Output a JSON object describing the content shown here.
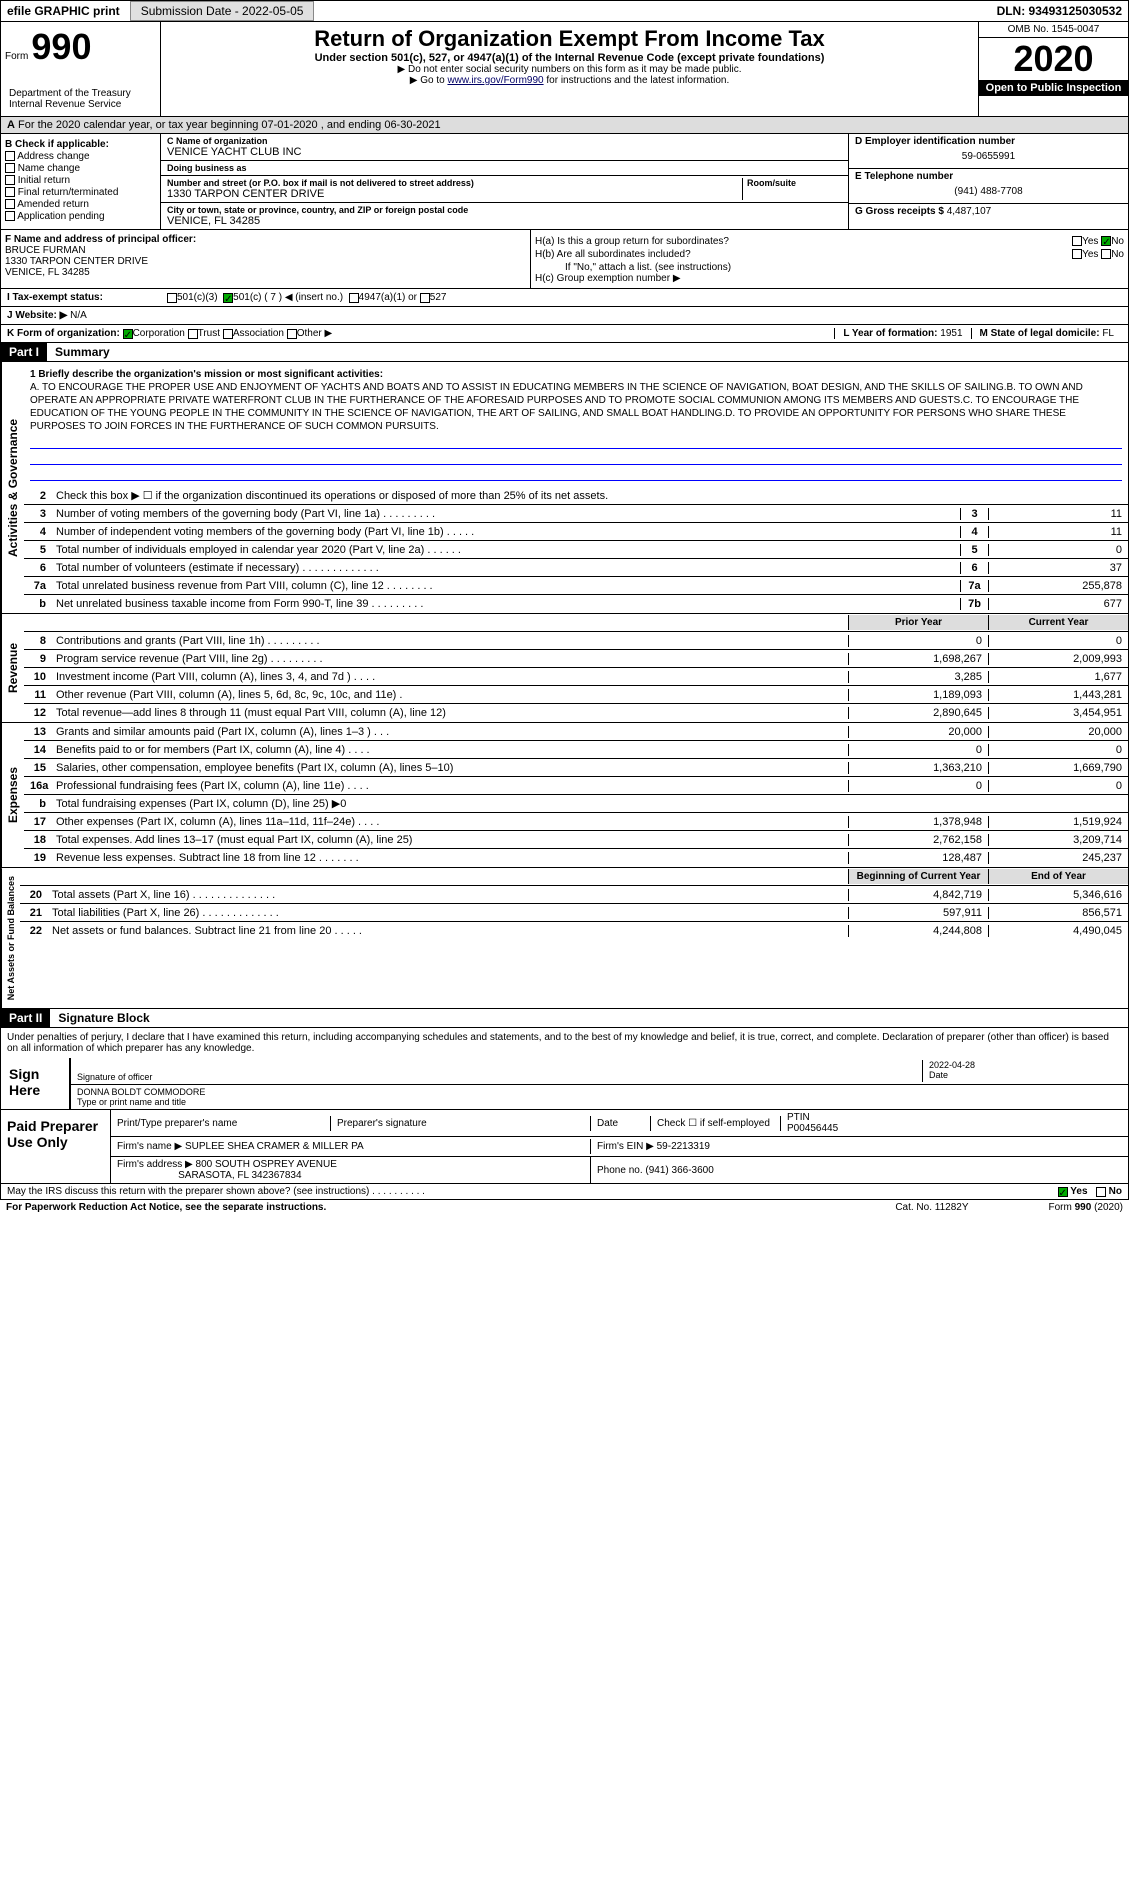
{
  "topbar": {
    "efile": "efile GRAPHIC print",
    "submission": "Submission Date - 2022-05-05",
    "dln": "DLN: 93493125030532"
  },
  "header": {
    "form_prefix": "Form",
    "form_num": "990",
    "title": "Return of Organization Exempt From Income Tax",
    "subtitle": "Under section 501(c), 527, or 4947(a)(1) of the Internal Revenue Code (except private foundations)",
    "note1": "▶ Do not enter social security numbers on this form as it may be made public.",
    "note2_prefix": "▶ Go to ",
    "note2_link": "www.irs.gov/Form990",
    "note2_suffix": " for instructions and the latest information.",
    "dept": "Department of the Treasury\nInternal Revenue Service",
    "omb": "OMB No. 1545-0047",
    "year": "2020",
    "inspect": "Open to Public Inspection"
  },
  "period": "For the 2020 calendar year, or tax year beginning 07-01-2020   , and ending 06-30-2021",
  "b": {
    "lbl": "B Check if applicable:",
    "items": [
      "Address change",
      "Name change",
      "Initial return",
      "Final return/terminated",
      "Amended return",
      "Application pending"
    ]
  },
  "c": {
    "name_lbl": "C Name of organization",
    "name": "VENICE YACHT CLUB INC",
    "dba_lbl": "Doing business as",
    "dba": "",
    "addr_lbl": "Number and street (or P.O. box if mail is not delivered to street address)",
    "room_lbl": "Room/suite",
    "addr": "1330 TARPON CENTER DRIVE",
    "city_lbl": "City or town, state or province, country, and ZIP or foreign postal code",
    "city": "VENICE, FL  34285"
  },
  "d": {
    "lbl": "D Employer identification number",
    "val": "59-0655991"
  },
  "e": {
    "lbl": "E Telephone number",
    "val": "(941) 488-7708"
  },
  "g": {
    "lbl": "G Gross receipts $",
    "val": "4,487,107"
  },
  "f": {
    "lbl": "F  Name and address of principal officer:",
    "name": "BRUCE FURMAN",
    "addr": "1330 TARPON CENTER DRIVE",
    "city": "VENICE, FL  34285"
  },
  "h": {
    "a": "H(a)  Is this a group return for subordinates?",
    "b": "H(b)  Are all subordinates included?",
    "note": "If \"No,\" attach a list. (see instructions)",
    "c": "H(c)  Group exemption number ▶"
  },
  "i": {
    "lbl": "I   Tax-exempt status:",
    "opts": [
      "501(c)(3)",
      "501(c) ( 7 ) ◀ (insert no.)",
      "4947(a)(1) or",
      "527"
    ]
  },
  "j": {
    "lbl": "J   Website: ▶",
    "val": "N/A"
  },
  "k": {
    "lbl": "K Form of organization:",
    "opts": [
      "Corporation",
      "Trust",
      "Association",
      "Other ▶"
    ]
  },
  "l": {
    "lbl": "L Year of formation:",
    "val": "1951"
  },
  "m": {
    "lbl": "M State of legal domicile:",
    "val": "FL"
  },
  "part1": {
    "hdr": "Part I",
    "title": "Summary",
    "mission_lbl": "1  Briefly describe the organization's mission or most significant activities:",
    "mission": "A. TO ENCOURAGE THE PROPER USE AND ENJOYMENT OF YACHTS AND BOATS AND TO ASSIST IN EDUCATING MEMBERS IN THE SCIENCE OF NAVIGATION, BOAT DESIGN, AND THE SKILLS OF SAILING.B. TO OWN AND OPERATE AN APPROPRIATE PRIVATE WATERFRONT CLUB IN THE FURTHERANCE OF THE AFORESAID PURPOSES AND TO PROMOTE SOCIAL COMMUNION AMONG ITS MEMBERS AND GUESTS.C. TO ENCOURAGE THE EDUCATION OF THE YOUNG PEOPLE IN THE COMMUNITY IN THE SCIENCE OF NAVIGATION, THE ART OF SAILING, AND SMALL BOAT HANDLING.D. TO PROVIDE AN OPPORTUNITY FOR PERSONS WHO SHARE THESE PURPOSES TO JOIN FORCES IN THE FURTHERANCE OF SUCH COMMON PURSUITS.",
    "line2": "Check this box ▶ ☐ if the organization discontinued its operations or disposed of more than 25% of its net assets.",
    "gov_label": "Activities & Governance",
    "rev_label": "Revenue",
    "exp_label": "Expenses",
    "net_label": "Net Assets or Fund Balances",
    "prior_hdr": "Prior Year",
    "current_hdr": "Current Year",
    "boy_hdr": "Beginning of Current Year",
    "eoy_hdr": "End of Year",
    "lines_gov": [
      {
        "n": "3",
        "t": "Number of voting members of the governing body (Part VI, line 1a)  .   .   .   .   .   .   .   .   .",
        "b": "3",
        "v": "11"
      },
      {
        "n": "4",
        "t": "Number of independent voting members of the governing body (Part VI, line 1b)  .   .   .   .   .",
        "b": "4",
        "v": "11"
      },
      {
        "n": "5",
        "t": "Total number of individuals employed in calendar year 2020 (Part V, line 2a)  .   .   .   .   .   .",
        "b": "5",
        "v": "0"
      },
      {
        "n": "6",
        "t": "Total number of volunteers (estimate if necessary)   .   .   .   .   .   .   .   .   .   .   .   .   .",
        "b": "6",
        "v": "37"
      },
      {
        "n": "7a",
        "t": "Total unrelated business revenue from Part VIII, column (C), line 12   .   .   .   .   .   .   .   .",
        "b": "7a",
        "v": "255,878"
      },
      {
        "n": "b",
        "t": "Net unrelated business taxable income from Form 990-T, line 39   .   .   .   .   .   .   .   .   .",
        "b": "7b",
        "v": "677"
      }
    ],
    "lines_rev": [
      {
        "n": "8",
        "t": "Contributions and grants (Part VIII, line 1h)   .   .   .   .   .   .   .   .   .",
        "p": "0",
        "c": "0"
      },
      {
        "n": "9",
        "t": "Program service revenue (Part VIII, line 2g)   .   .   .   .   .   .   .   .   .",
        "p": "1,698,267",
        "c": "2,009,993"
      },
      {
        "n": "10",
        "t": "Investment income (Part VIII, column (A), lines 3, 4, and 7d )   .   .   .   .",
        "p": "3,285",
        "c": "1,677"
      },
      {
        "n": "11",
        "t": "Other revenue (Part VIII, column (A), lines 5, 6d, 8c, 9c, 10c, and 11e)   .",
        "p": "1,189,093",
        "c": "1,443,281"
      },
      {
        "n": "12",
        "t": "Total revenue—add lines 8 through 11 (must equal Part VIII, column (A), line 12)",
        "p": "2,890,645",
        "c": "3,454,951"
      }
    ],
    "lines_exp": [
      {
        "n": "13",
        "t": "Grants and similar amounts paid (Part IX, column (A), lines 1–3 )   .   .   .",
        "p": "20,000",
        "c": "20,000"
      },
      {
        "n": "14",
        "t": "Benefits paid to or for members (Part IX, column (A), line 4)   .   .   .   .",
        "p": "0",
        "c": "0"
      },
      {
        "n": "15",
        "t": "Salaries, other compensation, employee benefits (Part IX, column (A), lines 5–10)",
        "p": "1,363,210",
        "c": "1,669,790"
      },
      {
        "n": "16a",
        "t": "Professional fundraising fees (Part IX, column (A), line 11e)   .   .   .   .",
        "p": "0",
        "c": "0"
      },
      {
        "n": "b",
        "t": "Total fundraising expenses (Part IX, column (D), line 25) ▶0",
        "p": "",
        "c": "",
        "shade": true
      },
      {
        "n": "17",
        "t": "Other expenses (Part IX, column (A), lines 11a–11d, 11f–24e)   .   .   .   .",
        "p": "1,378,948",
        "c": "1,519,924"
      },
      {
        "n": "18",
        "t": "Total expenses. Add lines 13–17 (must equal Part IX, column (A), line 25)",
        "p": "2,762,158",
        "c": "3,209,714"
      },
      {
        "n": "19",
        "t": "Revenue less expenses. Subtract line 18 from line 12   .   .   .   .   .   .   .",
        "p": "128,487",
        "c": "245,237"
      }
    ],
    "lines_net": [
      {
        "n": "20",
        "t": "Total assets (Part X, line 16)   .   .   .   .   .   .   .   .   .   .   .   .   .   .",
        "p": "4,842,719",
        "c": "5,346,616"
      },
      {
        "n": "21",
        "t": "Total liabilities (Part X, line 26)   .   .   .   .   .   .   .   .   .   .   .   .   .",
        "p": "597,911",
        "c": "856,571"
      },
      {
        "n": "22",
        "t": "Net assets or fund balances. Subtract line 21 from line 20   .   .   .   .   .",
        "p": "4,244,808",
        "c": "4,490,045"
      }
    ]
  },
  "part2": {
    "hdr": "Part II",
    "title": "Signature Block",
    "text": "Under penalties of perjury, I declare that I have examined this return, including accompanying schedules and statements, and to the best of my knowledge and belief, it is true, correct, and complete. Declaration of preparer (other than officer) is based on all information of which preparer has any knowledge.",
    "sign_lbl": "Sign Here",
    "sig_officer": "Signature of officer",
    "date_lbl": "Date",
    "date_val": "2022-04-28",
    "name_title": "DONNA BOLDT  COMMODORE",
    "name_title_lbl": "Type or print name and title",
    "paid_lbl": "Paid Preparer Use Only",
    "prep_name_lbl": "Print/Type preparer's name",
    "prep_sig_lbl": "Preparer's signature",
    "prep_date_lbl": "Date",
    "self_emp": "Check ☐ if self-employed",
    "ptin_lbl": "PTIN",
    "ptin": "P00456445",
    "firm_name_lbl": "Firm's name    ▶",
    "firm_name": "SUPLEE SHEA CRAMER & MILLER PA",
    "firm_ein_lbl": "Firm's EIN ▶",
    "firm_ein": "59-2213319",
    "firm_addr_lbl": "Firm's address ▶",
    "firm_addr": "800 SOUTH OSPREY AVENUE",
    "firm_city": "SARASOTA, FL  342367834",
    "phone_lbl": "Phone no.",
    "phone": "(941) 366-3600",
    "discuss": "May the IRS discuss this return with the preparer shown above? (see instructions)   .   .   .   .   .   .   .   .   .   .",
    "yes": "Yes",
    "no": "No"
  },
  "footer": {
    "paperwork": "For Paperwork Reduction Act Notice, see the separate instructions.",
    "cat": "Cat. No. 11282Y",
    "form": "Form 990 (2020)"
  }
}
